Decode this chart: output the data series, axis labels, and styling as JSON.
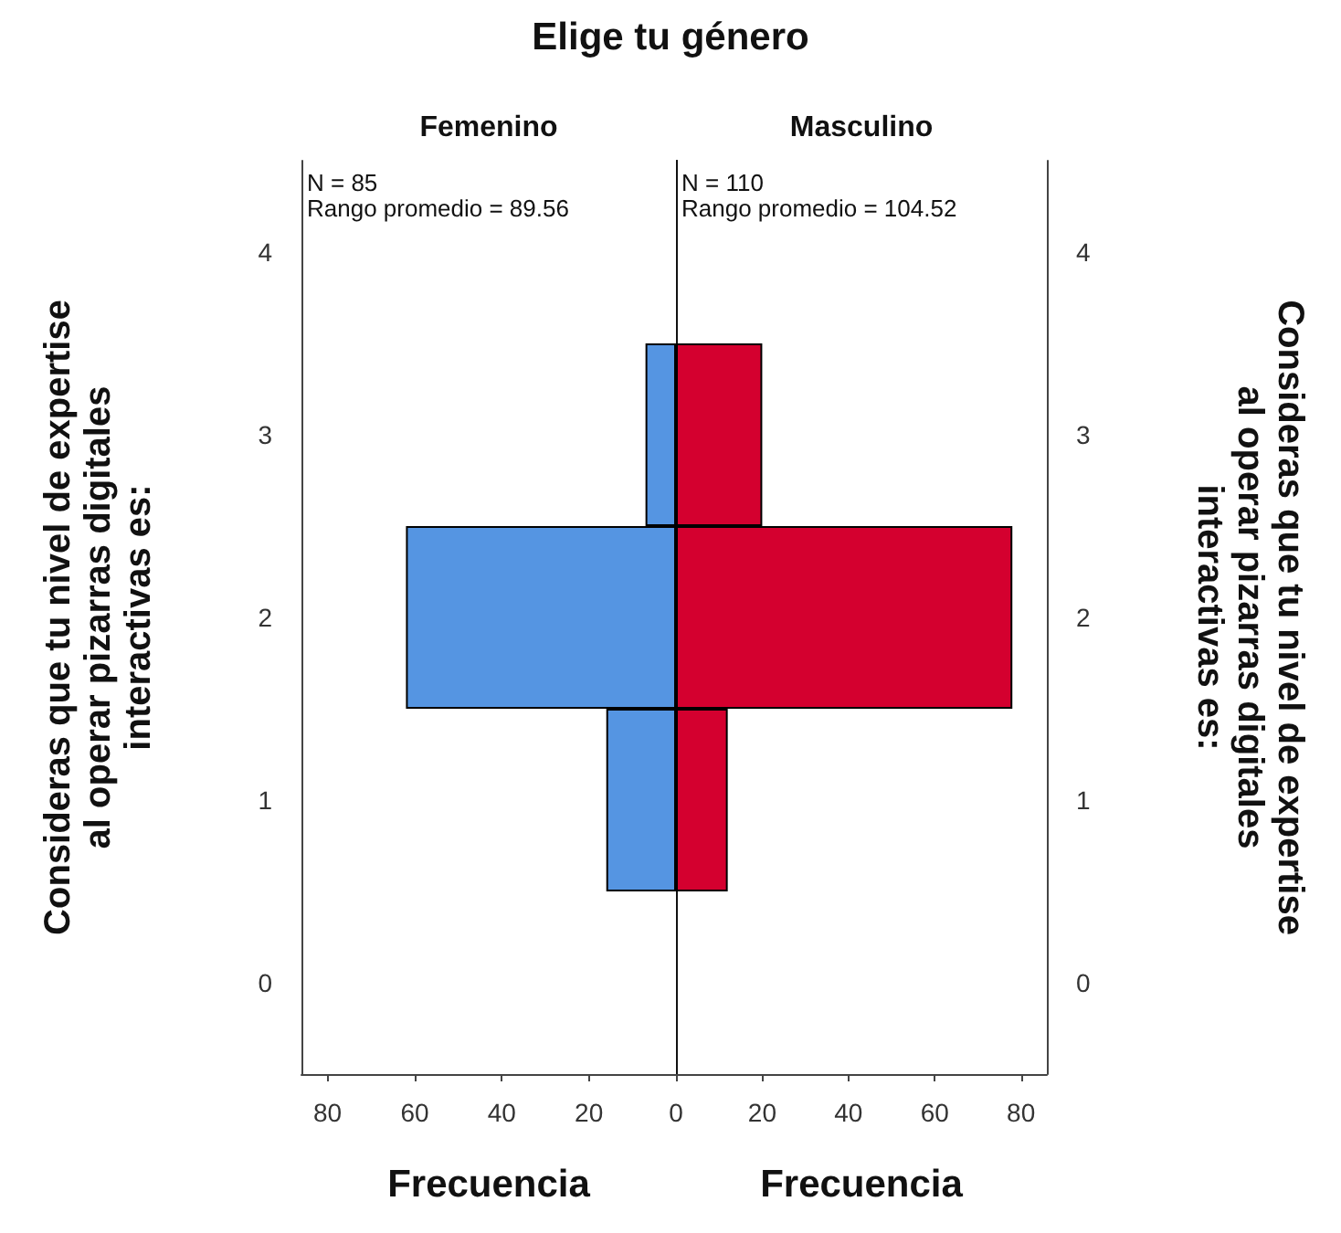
{
  "chart_data": [
    {
      "type": "bar",
      "orientation": "horizontal",
      "title": "Elige tu género",
      "subtitle": "Femenino",
      "xlabel": "Frecuencia",
      "ylabel": "Consideras que tu nivel de expertise al operar pizarras digitales interactivas es:",
      "categories": [
        "4",
        "3",
        "2",
        "1",
        "0"
      ],
      "values": [
        null,
        7,
        62,
        16,
        null
      ],
      "color": "#5595e2",
      "xlim": [
        86,
        0
      ],
      "xticks": [
        80,
        60,
        40,
        20,
        0
      ],
      "annotations": [
        "N = 85",
        "Rango promedio = 89.56"
      ]
    },
    {
      "type": "bar",
      "orientation": "horizontal",
      "subtitle": "Masculino",
      "xlabel": "Frecuencia",
      "ylabel": "Consideras que tu nivel de expertise al operar pizarras digitales interactivas es:",
      "categories": [
        "4",
        "3",
        "2",
        "1",
        "0"
      ],
      "values": [
        null,
        20,
        78,
        12,
        null
      ],
      "color": "#d4002f",
      "xlim": [
        0,
        86
      ],
      "xticks": [
        {
          "value": 0,
          "label": null
        },
        20,
        40,
        60,
        80
      ],
      "annotations": [
        "N = 110",
        "Rango promedio = 104.52"
      ]
    }
  ]
}
